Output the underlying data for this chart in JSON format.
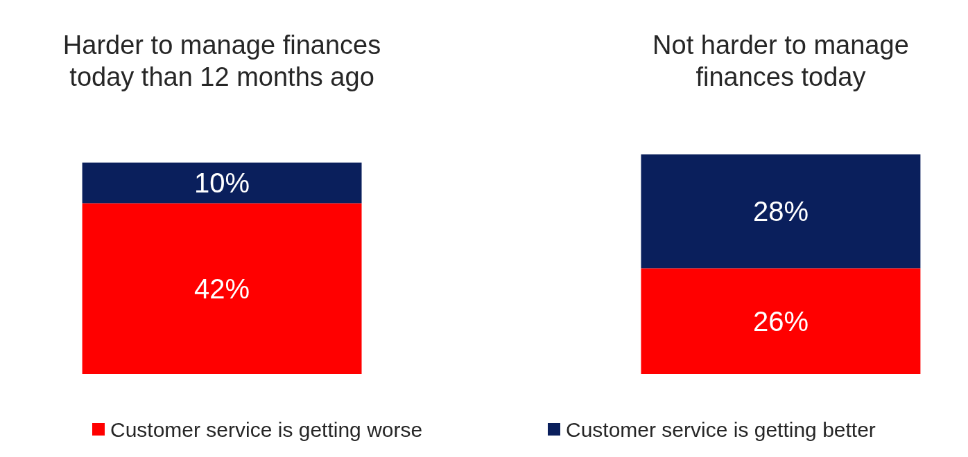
{
  "chart_data": {
    "type": "bar",
    "stacked": true,
    "categories": [
      "Harder to manage finances today than 12 months ago",
      "Not harder to manage finances today"
    ],
    "legend": "bottom",
    "series": [
      {
        "name": "Customer service is getting worse",
        "color": "#ff0000",
        "values": [
          42,
          26
        ],
        "value_labels": [
          "42%",
          "26%"
        ]
      },
      {
        "name": "Customer service is getting better",
        "color": "#0a1f5c",
        "values": [
          10,
          28
        ],
        "value_labels": [
          "10%",
          "28%"
        ]
      }
    ]
  }
}
